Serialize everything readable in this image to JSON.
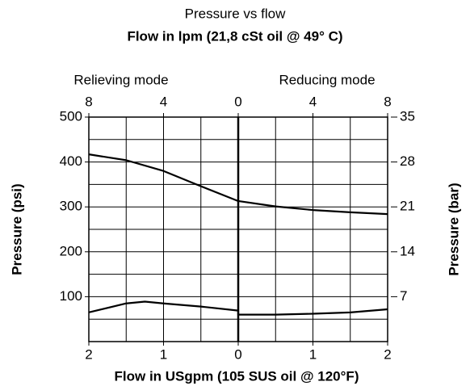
{
  "chart_data": {
    "type": "line",
    "title": "Pressure vs flow",
    "subtitle": "Flow in lpm (21,8 cSt oil @ 49° C)",
    "annotations": [
      "Relieving mode",
      "Reducing mode"
    ],
    "xlabel": "Flow in USgpm (105 SUS oil @ 120°F)",
    "ylabel": "Pressure (psi)",
    "y2label": "Pressure (bar)",
    "xlim": [
      -2,
      2
    ],
    "xticks": [
      {
        "value": -2,
        "label": "2"
      },
      {
        "value": -1,
        "label": "1"
      },
      0,
      1,
      2
    ],
    "x2lim": [
      -8,
      8
    ],
    "x2ticks": [
      {
        "value": -8,
        "label": "8"
      },
      {
        "value": -4,
        "label": "4"
      },
      0,
      4,
      8
    ],
    "ylim": [
      0,
      500
    ],
    "yticks": [
      100,
      200,
      300,
      400,
      500
    ],
    "y2lim": [
      0,
      35
    ],
    "y2ticks": [
      7,
      14,
      21,
      28,
      35
    ],
    "grid": true,
    "xgrid": [
      -2,
      -1.5,
      -1,
      -0.5,
      0,
      0.5,
      1,
      1.5,
      2
    ],
    "ygrid": [
      0,
      50,
      100,
      150,
      200,
      250,
      300,
      350,
      400,
      450,
      500
    ],
    "series": [
      {
        "color": "#000000",
        "x": [
          -2,
          -1.5,
          -1,
          -0.5,
          0,
          0.5,
          1,
          1.5,
          2
        ],
        "values": [
          417,
          404,
          380,
          346,
          313,
          301,
          293,
          288,
          284
        ]
      },
      {
        "color": "#000000",
        "x": [
          -2,
          -1.5,
          -1.25,
          -1,
          -0.5,
          0,
          0,
          0.5,
          1,
          1.5,
          2
        ],
        "values": [
          65,
          85,
          89,
          85,
          78,
          69,
          60,
          60,
          62,
          65,
          72
        ]
      }
    ]
  }
}
